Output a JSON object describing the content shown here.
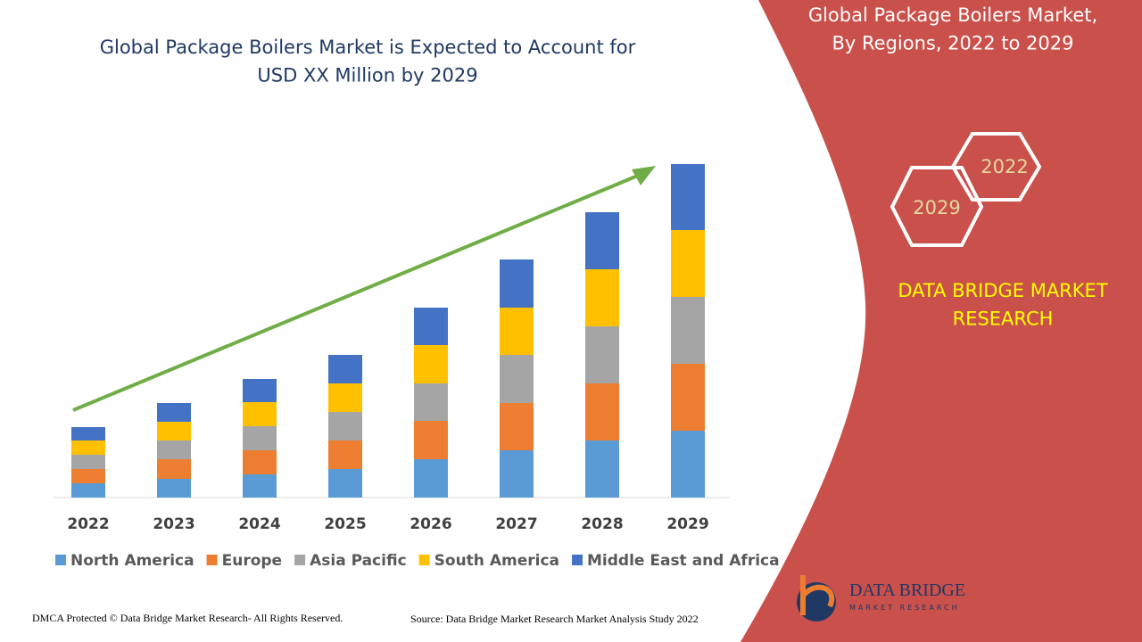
{
  "chart_data": {
    "type": "stacked-bar",
    "title": "Global Package Boilers Market is Expected to Account for USD XX Million by 2029",
    "categories": [
      "2022",
      "2023",
      "2024",
      "2025",
      "2026",
      "2027",
      "2028",
      "2029"
    ],
    "series": [
      {
        "name": "North America",
        "color": "#5b9bd5",
        "values": [
          16,
          21,
          26,
          32,
          43,
          53,
          64,
          75
        ]
      },
      {
        "name": "Europe",
        "color": "#ed7d31",
        "values": [
          16,
          22,
          27,
          32,
          43,
          53,
          64,
          75
        ]
      },
      {
        "name": "Asia Pacific",
        "color": "#a5a5a5",
        "values": [
          16,
          21,
          27,
          32,
          42,
          54,
          64,
          75
        ]
      },
      {
        "name": "South America",
        "color": "#ffc000",
        "values": [
          16,
          21,
          27,
          32,
          43,
          53,
          64,
          75
        ]
      },
      {
        "name": "Middle East and Africa",
        "color": "#4472c4",
        "values": [
          15,
          21,
          26,
          32,
          42,
          54,
          64,
          74
        ]
      }
    ],
    "ylim": [
      0,
      400
    ],
    "legend": "bottom"
  },
  "panel": {
    "title": "Global Package Boilers Market, By Regions, 2022 to 2029",
    "hex_years": [
      "2022",
      "2029"
    ],
    "brand": "DATA BRIDGE MARKET RESEARCH",
    "logo_name": "DATA BRIDGE",
    "logo_sub": "MARKET RESEARCH"
  },
  "footer": {
    "left": "DMCA Protected © Data Bridge Market Research- All Rights Reserved.",
    "right": "Source: Data Bridge Market Research Market Analysis Study 2022"
  }
}
